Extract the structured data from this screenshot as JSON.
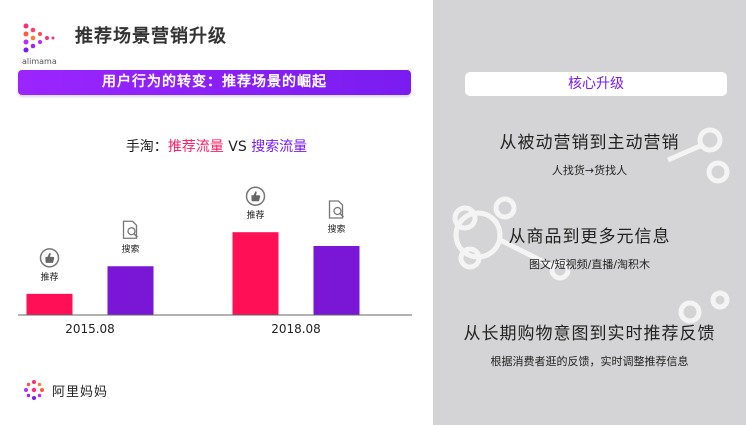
{
  "header": {
    "title": "推荐场景营销升级",
    "logo_text": "alimama"
  },
  "banner": {
    "label": "用户行为的转变：推荐场景的崛起"
  },
  "comparison": {
    "prefix": "手淘：",
    "recommend": "推荐流量",
    "vs": " VS ",
    "search": "搜索流量"
  },
  "chart_data": {
    "type": "bar",
    "categories": [
      "2015.08",
      "2018.08"
    ],
    "series": [
      {
        "name": "推荐",
        "values": [
          23,
          90
        ]
      },
      {
        "name": "搜索",
        "values": [
          53,
          75
        ]
      }
    ],
    "ylim": [
      0,
      100
    ],
    "colors": [
      "#ff0f55",
      "#7a16d6"
    ],
    "icons": [
      "thumbs-up-icon",
      "search-document-icon"
    ]
  },
  "right_panel": {
    "pill": "核心升级",
    "points": [
      {
        "head": "从被动营销到主动营销",
        "sub": "人找货→货找人"
      },
      {
        "head": "从商品到更多元信息",
        "sub": "图文/短视频/直播/淘积木"
      },
      {
        "head": "从长期购物意图到实时推荐反馈",
        "sub": "根据消费者逛的反馈，实时调整推荐信息"
      }
    ]
  },
  "footer": {
    "brand": "阿里妈妈"
  }
}
